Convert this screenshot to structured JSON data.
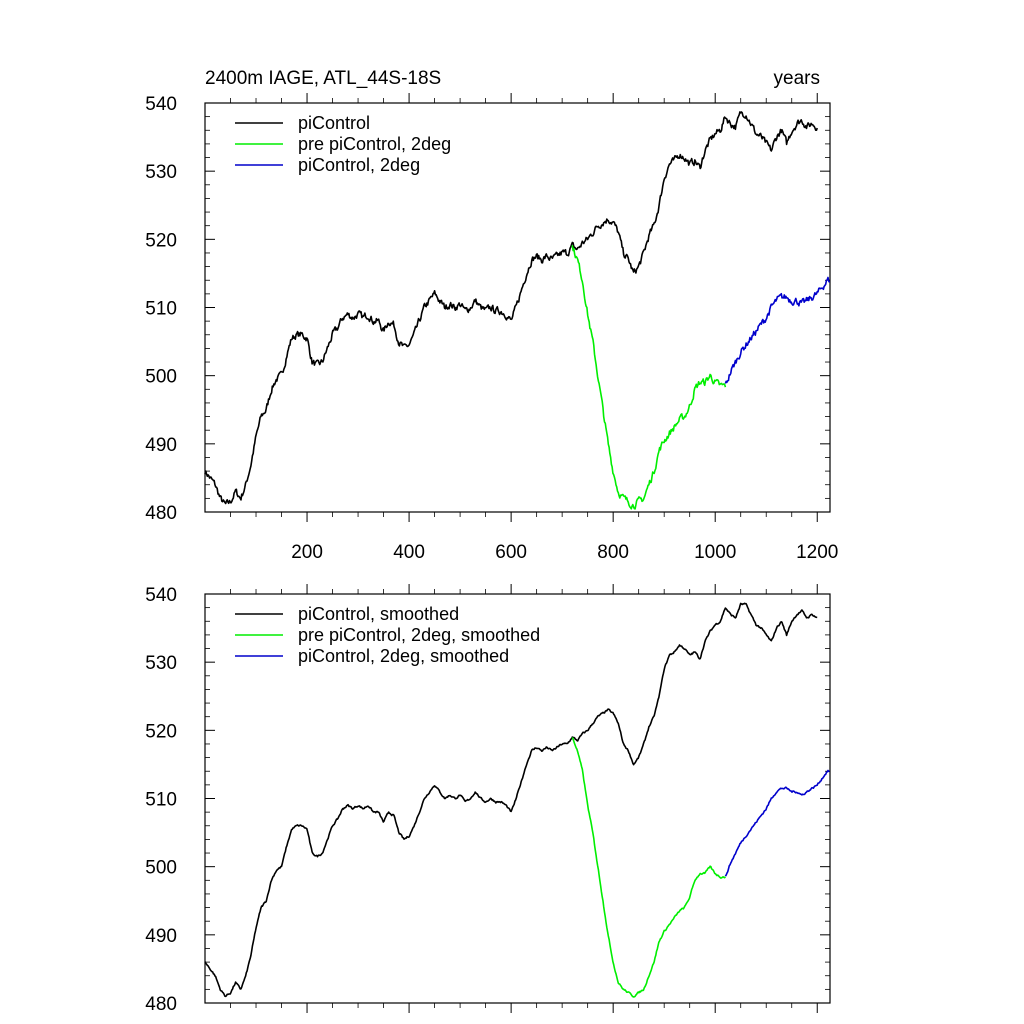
{
  "chart_data": [
    {
      "type": "line",
      "title": "2400m IAGE, ATL_44S-18S",
      "right_title": "years",
      "xlim": [
        0,
        1225
      ],
      "ylim": [
        480,
        540
      ],
      "x_ticks": [
        200,
        400,
        600,
        800,
        1000,
        1200
      ],
      "x_tick_labels": [
        "200",
        "400",
        "600",
        "800",
        "1000",
        "1200"
      ],
      "y_ticks": [
        480,
        490,
        500,
        510,
        520,
        530,
        540
      ],
      "y_tick_labels": [
        "480",
        "490",
        "500",
        "510",
        "520",
        "530",
        "540"
      ],
      "grid": false,
      "legend": "top-left",
      "series": [
        {
          "name": "piControl",
          "color": "#000000",
          "noise": 0.9,
          "x": [
            0,
            10,
            20,
            30,
            40,
            50,
            60,
            70,
            80,
            90,
            100,
            110,
            120,
            130,
            140,
            150,
            160,
            170,
            180,
            190,
            200,
            210,
            220,
            230,
            240,
            250,
            260,
            270,
            280,
            290,
            300,
            310,
            320,
            330,
            340,
            350,
            360,
            370,
            380,
            390,
            400,
            410,
            420,
            430,
            440,
            450,
            460,
            470,
            480,
            490,
            500,
            510,
            520,
            530,
            540,
            550,
            560,
            570,
            580,
            590,
            600,
            610,
            620,
            630,
            640,
            650,
            660,
            670,
            680,
            690,
            700,
            710,
            720,
            730,
            740,
            750,
            760,
            770,
            780,
            790,
            800,
            810,
            820,
            830,
            840,
            850,
            860,
            870,
            880,
            890,
            900,
            910,
            920,
            930,
            940,
            950,
            960,
            970,
            980,
            990,
            1000,
            1010,
            1020,
            1030,
            1040,
            1050,
            1060,
            1070,
            1080,
            1090,
            1100,
            1110,
            1120,
            1130,
            1140,
            1150,
            1160,
            1170,
            1180,
            1190,
            1200
          ],
          "values": [
            486,
            485,
            484,
            482,
            481,
            481.5,
            483,
            482,
            484,
            487,
            491,
            494,
            495,
            498,
            499.5,
            500,
            503,
            505.5,
            506,
            506,
            505.5,
            502,
            501.5,
            502,
            504,
            506,
            507,
            508.5,
            509,
            508.5,
            509,
            508.5,
            509,
            508,
            508,
            506.5,
            508,
            507.5,
            505,
            504,
            504.5,
            506,
            508,
            510,
            511,
            512,
            511,
            510,
            510.5,
            510,
            510.5,
            509.5,
            510,
            511,
            510,
            509.5,
            510,
            509.5,
            509.5,
            509,
            508,
            510,
            512.5,
            515,
            517,
            517.5,
            517,
            517.5,
            517,
            517.5,
            518,
            518,
            519,
            518.5,
            519.5,
            520,
            521,
            522,
            522.5,
            523,
            522.5,
            521,
            518,
            517,
            515,
            516,
            518,
            520.5,
            522,
            525,
            529,
            531,
            531.5,
            532.5,
            532,
            531,
            531.5,
            530.5,
            533,
            534.5,
            535.5,
            536,
            538,
            537,
            536.5,
            538.5,
            538.5,
            537,
            535.5,
            535,
            534,
            533,
            535,
            536,
            534,
            536,
            537,
            537.5,
            536.5,
            537,
            536.5
          ]
        },
        {
          "name": "pre piControl, 2deg",
          "color": "#00ee00",
          "noise": 0.9,
          "x": [
            720,
            730,
            740,
            750,
            760,
            770,
            780,
            790,
            800,
            810,
            820,
            830,
            840,
            850,
            860,
            870,
            880,
            890,
            900,
            910,
            920,
            930,
            940,
            950,
            960,
            970,
            980,
            990,
            1000,
            1010,
            1020
          ],
          "values": [
            519,
            517,
            514,
            509,
            505,
            500,
            495,
            490,
            486,
            483,
            482,
            481.5,
            481,
            481.5,
            482,
            484,
            486,
            489,
            490.5,
            491.5,
            492.5,
            493.5,
            494,
            495.5,
            498,
            499,
            499,
            500,
            499,
            498.5,
            498.5
          ]
        },
        {
          "name": "piControl, 2deg",
          "color": "#0000cc",
          "noise": 0.9,
          "x": [
            1020,
            1030,
            1040,
            1050,
            1060,
            1070,
            1080,
            1090,
            1100,
            1110,
            1120,
            1130,
            1140,
            1150,
            1160,
            1170,
            1180,
            1190,
            1200,
            1210,
            1220,
            1225
          ],
          "values": [
            498.5,
            500.5,
            502,
            503.5,
            504.5,
            505.5,
            506.5,
            507.5,
            508.5,
            510,
            511,
            511.5,
            511.5,
            511,
            511,
            510.5,
            511,
            511.5,
            512,
            513,
            514,
            514
          ]
        }
      ]
    },
    {
      "type": "line",
      "title": "",
      "xlim": [
        0,
        1225
      ],
      "ylim": [
        480,
        540
      ],
      "x_ticks": [
        200,
        400,
        600,
        800,
        1000,
        1200
      ],
      "y_ticks": [
        480,
        490,
        500,
        510,
        520,
        530,
        540
      ],
      "y_tick_labels": [
        "480",
        "490",
        "500",
        "510",
        "520",
        "530",
        "540"
      ],
      "grid": false,
      "legend": "top-left",
      "series": [
        {
          "name": "piControl, smoothed",
          "color": "#000000",
          "noise": 0.25,
          "x": [
            0,
            10,
            20,
            30,
            40,
            50,
            60,
            70,
            80,
            90,
            100,
            110,
            120,
            130,
            140,
            150,
            160,
            170,
            180,
            190,
            200,
            210,
            220,
            230,
            240,
            250,
            260,
            270,
            280,
            290,
            300,
            310,
            320,
            330,
            340,
            350,
            360,
            370,
            380,
            390,
            400,
            410,
            420,
            430,
            440,
            450,
            460,
            470,
            480,
            490,
            500,
            510,
            520,
            530,
            540,
            550,
            560,
            570,
            580,
            590,
            600,
            610,
            620,
            630,
            640,
            650,
            660,
            670,
            680,
            690,
            700,
            710,
            720,
            730,
            740,
            750,
            760,
            770,
            780,
            790,
            800,
            810,
            820,
            830,
            840,
            850,
            860,
            870,
            880,
            890,
            900,
            910,
            920,
            930,
            940,
            950,
            960,
            970,
            980,
            990,
            1000,
            1010,
            1020,
            1030,
            1040,
            1050,
            1060,
            1070,
            1080,
            1090,
            1100,
            1110,
            1120,
            1130,
            1140,
            1150,
            1160,
            1170,
            1180,
            1190,
            1200
          ],
          "values": [
            486,
            485,
            484,
            482,
            481,
            481.5,
            483,
            482,
            484,
            487,
            491,
            494,
            495,
            498,
            499.5,
            500,
            503,
            505.5,
            506,
            506,
            505.5,
            502,
            501.5,
            502,
            504,
            506,
            507,
            508.5,
            509,
            508.5,
            509,
            508.5,
            509,
            508,
            508,
            506.5,
            508,
            507.5,
            505,
            504,
            504.5,
            506,
            508,
            510,
            511,
            512,
            511,
            510,
            510.5,
            510,
            510.5,
            509.5,
            510,
            511,
            510,
            509.5,
            510,
            509.5,
            509.5,
            509,
            508,
            510,
            512.5,
            515,
            517,
            517.5,
            517,
            517.5,
            517,
            517.5,
            518,
            518,
            519,
            518.5,
            519.5,
            520,
            521,
            522,
            522.5,
            523,
            522.5,
            521,
            518,
            517,
            515,
            516,
            518,
            520.5,
            522,
            525,
            529,
            531,
            531.5,
            532.5,
            532,
            531,
            531.5,
            530.5,
            533,
            534.5,
            535.5,
            536,
            538,
            537,
            536.5,
            538.5,
            538.5,
            537,
            535.5,
            535,
            534,
            533,
            535,
            536,
            534,
            536,
            537,
            537.5,
            536.5,
            537,
            536.5
          ]
        },
        {
          "name": "pre piControl, 2deg, smoothed",
          "color": "#00ee00",
          "noise": 0.25,
          "x": [
            720,
            730,
            740,
            750,
            760,
            770,
            780,
            790,
            800,
            810,
            820,
            830,
            840,
            850,
            860,
            870,
            880,
            890,
            900,
            910,
            920,
            930,
            940,
            950,
            960,
            970,
            980,
            990,
            1000,
            1010,
            1020
          ],
          "values": [
            519,
            517,
            514,
            509,
            505,
            500,
            495,
            490,
            486,
            483,
            482,
            481.5,
            481,
            481.5,
            482,
            484,
            486,
            489,
            490.5,
            491.5,
            492.5,
            493.5,
            494,
            495.5,
            498,
            499,
            499,
            500,
            499,
            498.5,
            498.5
          ]
        },
        {
          "name": "piControl, 2deg, smoothed",
          "color": "#0000cc",
          "noise": 0.25,
          "x": [
            1020,
            1030,
            1040,
            1050,
            1060,
            1070,
            1080,
            1090,
            1100,
            1110,
            1120,
            1130,
            1140,
            1150,
            1160,
            1170,
            1180,
            1190,
            1200,
            1210,
            1220,
            1225
          ],
          "values": [
            498.5,
            500.5,
            502,
            503.5,
            504.5,
            505.5,
            506.5,
            507.5,
            508.5,
            510,
            511,
            511.5,
            511.5,
            511,
            511,
            510.5,
            511,
            511.5,
            512,
            513,
            514,
            514
          ]
        }
      ]
    }
  ]
}
